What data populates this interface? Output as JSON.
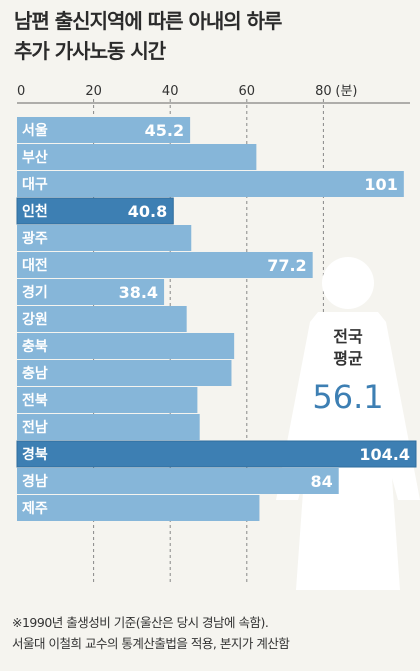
{
  "title_line1": "남편 출신지역에 따른 아내의 하루",
  "title_line2": "추가 가사노동 시간",
  "axis_unit": "(분)",
  "average": {
    "label_line1": "전국",
    "label_line2": "평균",
    "value_text": "56.1"
  },
  "footnote_line1": "※1990년 출생성비 기준(울산은 당시 경남에 속함).",
  "footnote_line2": "서울대 이철희 교수의 통계산출법을 적용, 본지가 계산함",
  "colors": {
    "bar": "#86b6d9",
    "bar_dark": "#3d7fb3",
    "bar_edge": "#2e6c9c"
  },
  "chart_data": {
    "type": "bar",
    "orientation": "horizontal",
    "title": "남편 출신지역에 따른 아내의 하루 추가 가사노동 시간",
    "xlabel": "(분)",
    "xlim": [
      0,
      100
    ],
    "xticks": [
      "0",
      "20",
      "40",
      "60",
      "80"
    ],
    "grid": true,
    "categories": [
      "서울",
      "부산",
      "대구",
      "인천",
      "광주",
      "대전",
      "경기",
      "강원",
      "충북",
      "충남",
      "전북",
      "전남",
      "경북",
      "경남",
      "제주"
    ],
    "values": [
      45.2,
      62.5,
      101,
      40.8,
      45.5,
      77.2,
      38.4,
      44.3,
      56.7,
      56.0,
      47.1,
      47.7,
      104.4,
      84,
      63.3
    ],
    "value_labels": [
      "45.2",
      "",
      "101",
      "40.8",
      "",
      "77.2",
      "38.4",
      "",
      "",
      "",
      "",
      "",
      "104.4",
      "84",
      ""
    ],
    "highlight": [
      "인천",
      "경북"
    ],
    "national_average": 56.1
  }
}
